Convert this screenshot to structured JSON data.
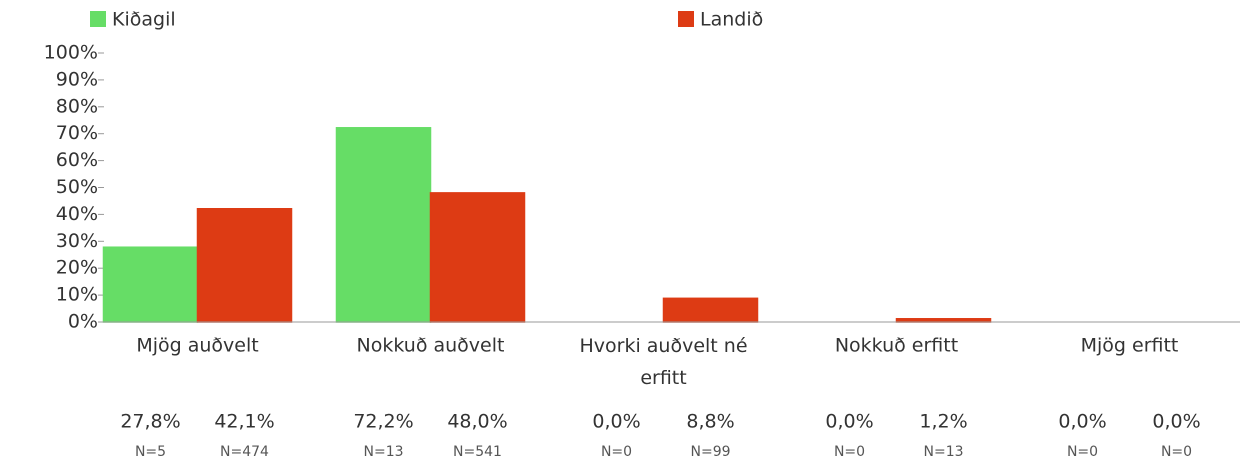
{
  "chart_data": {
    "type": "bar",
    "categories": [
      "Mjög auðvelt",
      "Nokkuð auðvelt",
      "Hvorki auðvelt né erfitt",
      "Nokkuð erfitt",
      "Mjög erfitt"
    ],
    "series": [
      {
        "name": "Kiðagil",
        "color": "#66dd66",
        "values": [
          27.8,
          72.2,
          0.0,
          0.0,
          0.0
        ],
        "value_labels": [
          "27,8%",
          "72,2%",
          "0,0%",
          "0,0%",
          "0,0%"
        ],
        "count_labels": [
          "N=5",
          "N=13",
          "N=0",
          "N=0",
          "N=0"
        ]
      },
      {
        "name": "Landið",
        "color": "#dd3b14",
        "values": [
          42.1,
          48.0,
          8.8,
          1.2,
          0.0
        ],
        "value_labels": [
          "42,1%",
          "48,0%",
          "8,8%",
          "1,2%",
          "0,0%"
        ],
        "count_labels": [
          "N=474",
          "N=541",
          "N=99",
          "N=13",
          "N=0"
        ]
      }
    ],
    "ylim": [
      0,
      100
    ],
    "yticks": [
      {
        "value": 0,
        "label": "0%"
      },
      {
        "value": 10,
        "label": "10%"
      },
      {
        "value": 20,
        "label": "20%"
      },
      {
        "value": 30,
        "label": "30%"
      },
      {
        "value": 40,
        "label": "40%"
      },
      {
        "value": 50,
        "label": "50%"
      },
      {
        "value": 60,
        "label": "60%"
      },
      {
        "value": 70,
        "label": "70%"
      },
      {
        "value": 80,
        "label": "80%"
      },
      {
        "value": 90,
        "label": "90%"
      },
      {
        "value": 100,
        "label": "100%"
      }
    ],
    "legend": "top"
  }
}
